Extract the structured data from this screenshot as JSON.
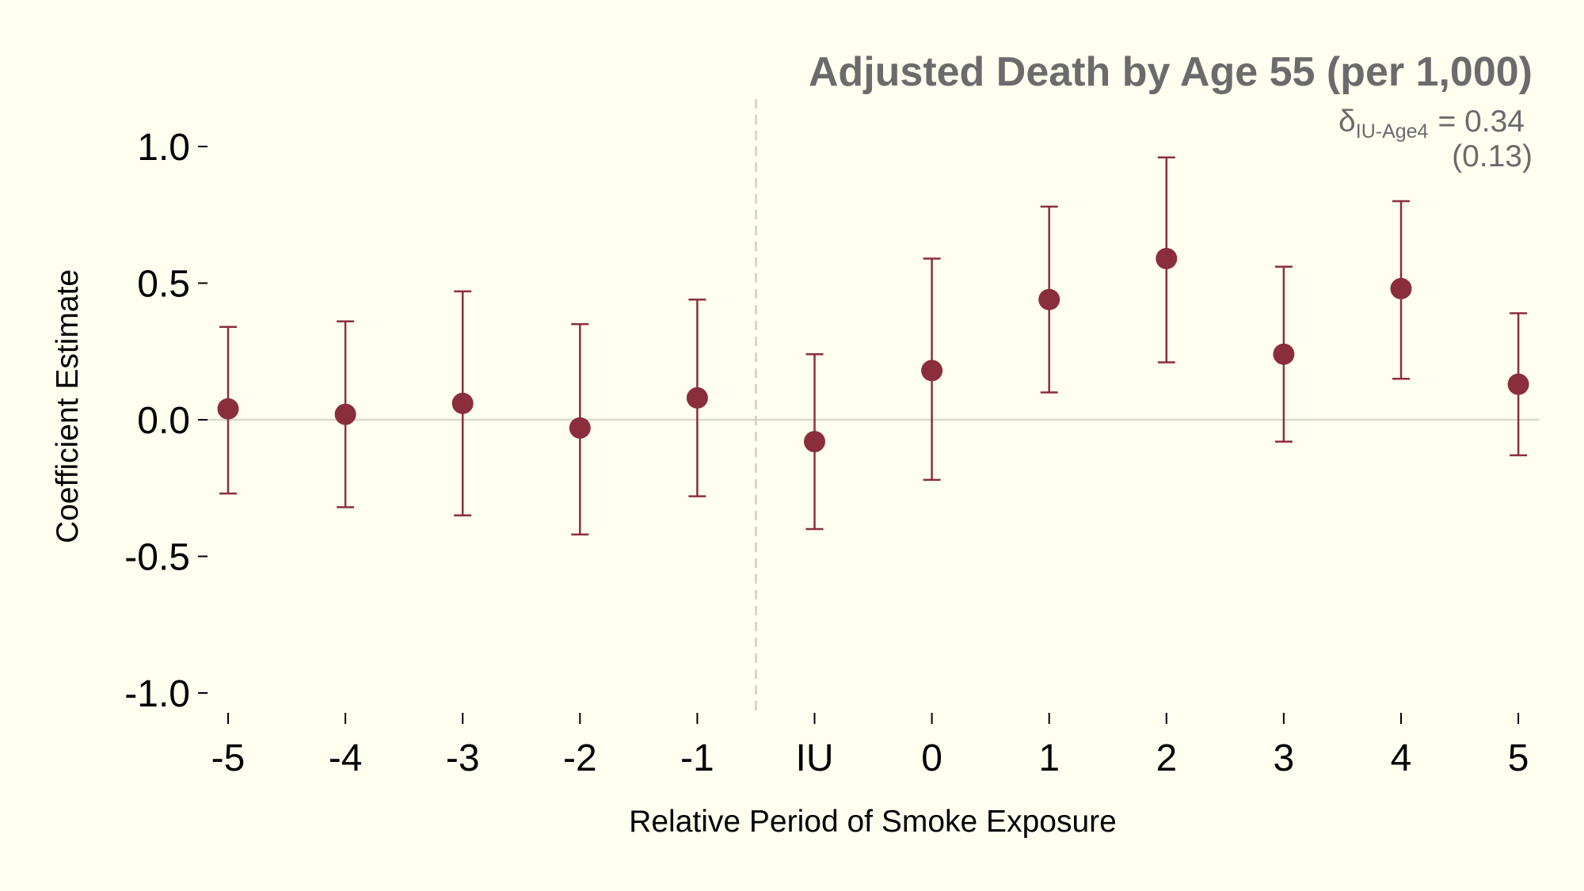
{
  "chart_data": {
    "type": "scatter",
    "title": "Adjusted Death by Age 55 (per 1,000)",
    "annotation": {
      "delta_symbol": "δ",
      "delta_subscript": "IU-Age4",
      "delta_value": "= 0.34",
      "standard_error": "(0.13)"
    },
    "xlabel": "Relative Period of Smoke Exposure",
    "ylabel": "Coefficient Estimate",
    "categories": [
      "-5",
      "-4",
      "-3",
      "-2",
      "-1",
      "IU",
      "0",
      "1",
      "2",
      "3",
      "4",
      "5"
    ],
    "series": [
      {
        "values": [
          0.04,
          0.02,
          0.06,
          -0.03,
          0.08,
          -0.08,
          0.18,
          0.44,
          0.59,
          0.24,
          0.48,
          0.13
        ],
        "ci_lower": [
          -0.27,
          -0.32,
          -0.35,
          -0.42,
          -0.28,
          -0.4,
          -0.22,
          0.1,
          0.21,
          -0.08,
          0.15,
          -0.13
        ],
        "ci_upper": [
          0.34,
          0.36,
          0.47,
          0.35,
          0.44,
          0.24,
          0.59,
          0.78,
          0.96,
          0.56,
          0.8,
          0.39
        ]
      }
    ],
    "ylim": [
      -1.0,
      1.0
    ],
    "yticks": [
      "-1.0",
      "-0.5",
      "0.0",
      "0.5",
      "1.0"
    ],
    "reference_line_y": 0,
    "treatment_divider": "between -1 and IU",
    "grid": false,
    "colors": {
      "marker": "#8b2e3c",
      "errorbar": "#8b2e3c",
      "zero_line": "#d9d9cc",
      "divider": "#cfcfc4",
      "title": "#6b6b6b",
      "background": "#fffff0"
    }
  }
}
